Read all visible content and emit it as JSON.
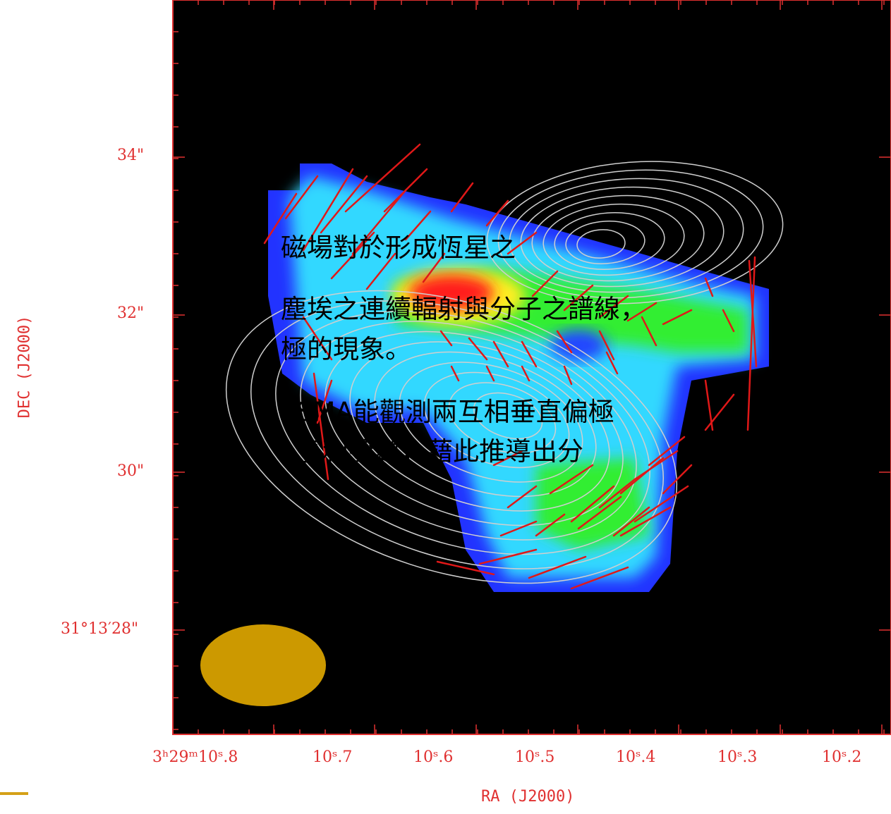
{
  "figure": {
    "y_axis_title": "DEC (J2000)",
    "x_axis_title": "RA (J2000)",
    "y_ticks": [
      {
        "h": "34",
        "s": "\""
      },
      {
        "h": "32",
        "s": "\""
      },
      {
        "h": "30",
        "s": "\""
      },
      {
        "h": "31°13′28",
        "s": "\""
      }
    ],
    "x_ticks": [
      "3ʰ29ᵐ10ˢ.8",
      "10ˢ.7",
      "10ˢ.6",
      "10ˢ.5",
      "10ˢ.4",
      "10ˢ.3",
      "10ˢ.2"
    ],
    "colors": {
      "axis": "#e03030",
      "frame_bg": "#000000",
      "contour": "#cfcfcf",
      "vector": "#e01818",
      "beam": "#cc9900",
      "accent": "#d4a017"
    }
  },
  "overlay_text": {
    "line1": "磁場對於形成恆星之",
    "line2": "塵埃之連續輻射與分子之譜線，",
    "line3": "極的現象。",
    "line4": "SMA能觀測兩互相垂直偏極",
    "line5": "亨利參數，藉此推導出分"
  }
}
